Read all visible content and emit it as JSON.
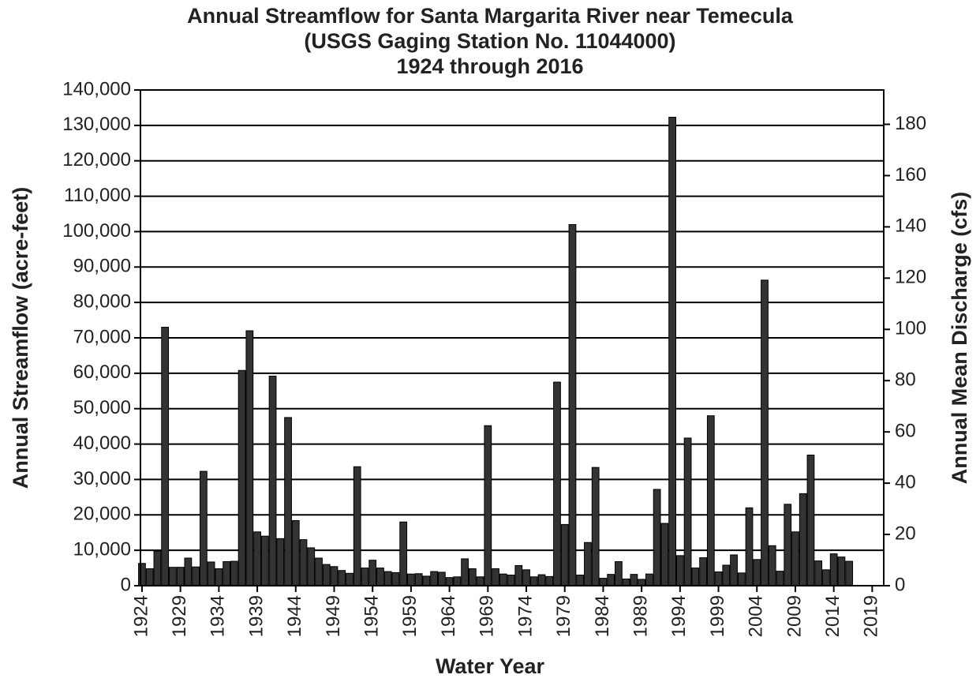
{
  "chart_data": {
    "type": "bar",
    "title": "Annual Streamflow for Santa Margarita River near Temecula",
    "subtitle": [
      "(USGS Gaging Station No. 11044000)",
      "1924 through 2016"
    ],
    "x_label": "Water Year",
    "y_label": "Annual Streamflow  (acre-feet)",
    "y2_label": "Annual Mean Discharge (cfs)",
    "color": "#333333",
    "grid": true,
    "x": [
      1924,
      1925,
      1926,
      1927,
      1928,
      1929,
      1930,
      1931,
      1932,
      1933,
      1934,
      1935,
      1936,
      1937,
      1938,
      1939,
      1940,
      1941,
      1942,
      1943,
      1944,
      1945,
      1946,
      1947,
      1948,
      1949,
      1950,
      1951,
      1952,
      1953,
      1954,
      1955,
      1956,
      1957,
      1958,
      1959,
      1960,
      1961,
      1962,
      1963,
      1964,
      1965,
      1966,
      1967,
      1968,
      1969,
      1970,
      1971,
      1972,
      1973,
      1974,
      1975,
      1976,
      1977,
      1978,
      1979,
      1980,
      1981,
      1982,
      1983,
      1984,
      1985,
      1986,
      1987,
      1988,
      1989,
      1990,
      1991,
      1992,
      1993,
      1994,
      1995,
      1996,
      1997,
      1998,
      1999,
      2000,
      2001,
      2002,
      2003,
      2004,
      2005,
      2006,
      2007,
      2008,
      2009,
      2010,
      2011,
      2012,
      2013,
      2014,
      2015,
      2016
    ],
    "values": [
      6300,
      4800,
      9800,
      73000,
      5200,
      5200,
      7800,
      5300,
      32300,
      6700,
      4800,
      6800,
      6900,
      60800,
      72000,
      15200,
      14000,
      59200,
      13300,
      47500,
      18400,
      13000,
      10700,
      7800,
      6000,
      5400,
      4300,
      3500,
      33600,
      5000,
      7200,
      5000,
      4000,
      3700,
      18000,
      3300,
      3400,
      2700,
      4000,
      3800,
      2300,
      2500,
      7600,
      4800,
      2500,
      45200,
      4800,
      3300,
      3000,
      5700,
      4500,
      2500,
      3100,
      2600,
      57500,
      17300,
      102000,
      3000,
      12200,
      33400,
      2100,
      3200,
      6800,
      1900,
      3200,
      1800,
      3300,
      27200,
      17600,
      132300,
      8500,
      41700,
      5000,
      7900,
      48000,
      3900,
      5800,
      8700,
      3600,
      22000,
      7400,
      86300,
      11300,
      4100,
      23000,
      15200,
      26000,
      36900,
      7000,
      4500,
      9000,
      8100,
      6900
    ],
    "xlim": [
      1923.8,
      2020.5
    ],
    "xticks": [
      1924,
      1929,
      1934,
      1939,
      1944,
      1949,
      1954,
      1959,
      1964,
      1969,
      1974,
      1979,
      1984,
      1989,
      1994,
      1999,
      2004,
      2009,
      2014,
      2019
    ],
    "ylim": [
      0,
      140000
    ],
    "yticks": [
      0,
      {
        "value": 10000,
        "label": "10,000"
      },
      {
        "value": 20000,
        "label": "20,000"
      },
      {
        "value": 30000,
        "label": "30,000"
      },
      {
        "value": 40000,
        "label": "40,000"
      },
      {
        "value": 50000,
        "label": "50,000"
      },
      {
        "value": 60000,
        "label": "60,000"
      },
      {
        "value": 70000,
        "label": "70,000"
      },
      {
        "value": 80000,
        "label": "80,000"
      },
      {
        "value": 90000,
        "label": "90,000"
      },
      {
        "value": 100000,
        "label": "100,000"
      },
      {
        "value": 110000,
        "label": "110,000"
      },
      {
        "value": 120000,
        "label": "120,000"
      },
      {
        "value": 130000,
        "label": "130,000"
      },
      {
        "value": 140000,
        "label": "140,000"
      }
    ],
    "y2lim": [
      0,
      193.4
    ],
    "y2ticks": [
      0,
      20,
      40,
      60,
      80,
      100,
      120,
      140,
      160,
      180
    ]
  }
}
